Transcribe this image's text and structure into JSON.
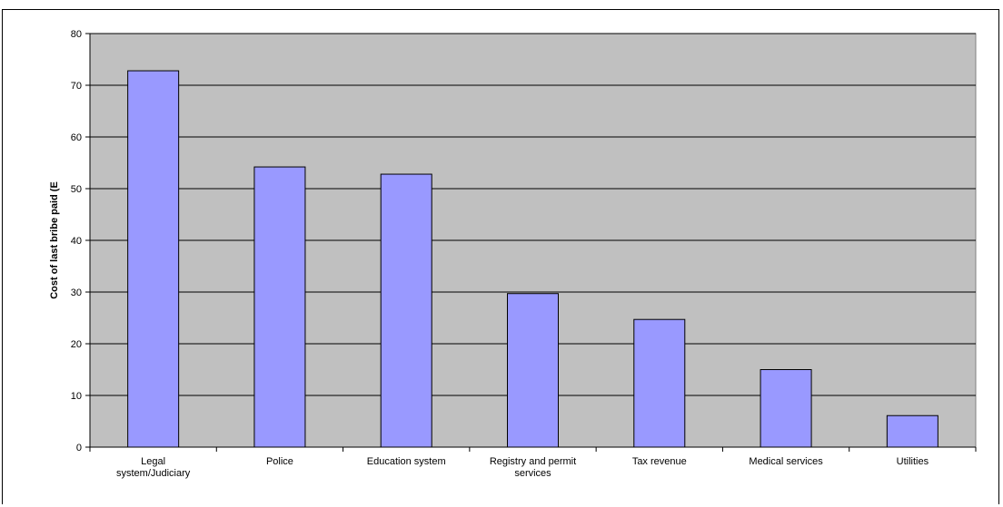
{
  "chart_data": {
    "type": "bar",
    "title": "",
    "xlabel": "",
    "ylabel": "Cost of last bribe paid (E",
    "ylim": [
      0,
      80
    ],
    "yticks": [
      0,
      10,
      20,
      30,
      40,
      50,
      60,
      70,
      80
    ],
    "grid": true,
    "categories": [
      [
        "Legal",
        "system/Judiciary"
      ],
      [
        "Police"
      ],
      [
        "Education system"
      ],
      [
        "Registry and permit",
        "services"
      ],
      [
        "Tax revenue"
      ],
      [
        "Medical services"
      ],
      [
        "Utilities"
      ]
    ],
    "values": [
      72.8,
      54.2,
      52.8,
      29.7,
      24.7,
      15.0,
      6.1
    ],
    "colors": {
      "plot_background": "#c0c0c0",
      "bar_fill": "#9999ff",
      "bar_stroke": "#000000",
      "grid": "#000000"
    }
  }
}
